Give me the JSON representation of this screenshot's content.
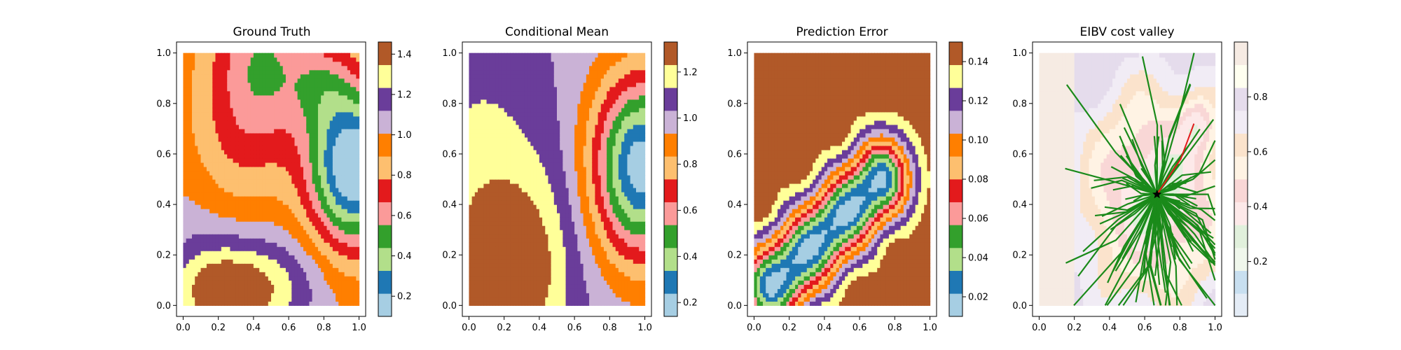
{
  "chart_data": [
    {
      "type": "heatmap",
      "title": "Ground Truth",
      "xlabel": "",
      "ylabel": "",
      "xlim": [
        0.0,
        1.0
      ],
      "ylim": [
        0.0,
        1.0
      ],
      "xticks": [
        "0.0",
        "0.2",
        "0.4",
        "0.6",
        "0.8",
        "1.0"
      ],
      "yticks": [
        "0.0",
        "0.2",
        "0.4",
        "0.6",
        "0.8",
        "1.0"
      ],
      "colormap": [
        "#a6cee3",
        "#1f78b4",
        "#b2df8a",
        "#33a02c",
        "#fb9a99",
        "#e31a1c",
        "#fdbf6f",
        "#ff7f00",
        "#cab2d6",
        "#6a3d9a",
        "#ffff99",
        "#b15928"
      ],
      "colorbar": {
        "range": [
          0.1,
          1.46
        ],
        "ticks": [
          "0.2",
          "0.4",
          "0.6",
          "0.8",
          "1.0",
          "1.2",
          "1.4"
        ]
      },
      "field": {
        "base": 1.0,
        "components": [
          {
            "cx": 0.97,
            "cy": 0.55,
            "sx": 0.18,
            "sy": 0.22,
            "a": -0.95
          },
          {
            "cx": 0.45,
            "cy": 0.95,
            "sx": 0.22,
            "sy": 0.22,
            "a": -0.45
          },
          {
            "cx": 0.22,
            "cy": 0.05,
            "sx": 0.2,
            "sy": 0.14,
            "a": 0.45
          },
          {
            "cx": 0.55,
            "cy": 0.08,
            "sx": 0.2,
            "sy": 0.14,
            "a": 0.2
          },
          {
            "cx": 0.3,
            "cy": 0.6,
            "sx": 0.22,
            "sy": 0.18,
            "a": -0.15
          },
          {
            "cx": 0.8,
            "cy": 0.88,
            "sx": 0.12,
            "sy": 0.12,
            "a": -0.2
          },
          {
            "cx": 0.05,
            "cy": 0.35,
            "sx": 0.12,
            "sy": 0.2,
            "a": 0.05
          }
        ]
      }
    },
    {
      "type": "heatmap",
      "title": "Conditional Mean",
      "xlabel": "",
      "ylabel": "",
      "xlim": [
        0.0,
        1.0
      ],
      "ylim": [
        0.0,
        1.0
      ],
      "xticks": [
        "0.0",
        "0.2",
        "0.4",
        "0.6",
        "0.8",
        "1.0"
      ],
      "yticks": [
        "0.0",
        "0.2",
        "0.4",
        "0.6",
        "0.8",
        "1.0"
      ],
      "colormap": [
        "#a6cee3",
        "#1f78b4",
        "#b2df8a",
        "#33a02c",
        "#fb9a99",
        "#e31a1c",
        "#fdbf6f",
        "#ff7f00",
        "#cab2d6",
        "#6a3d9a",
        "#ffff99",
        "#b15928"
      ],
      "colorbar": {
        "range": [
          0.14,
          1.33
        ],
        "ticks": [
          "0.2",
          "0.4",
          "0.6",
          "0.8",
          "1.0",
          "1.2"
        ]
      },
      "field": {
        "base": 1.02,
        "components": [
          {
            "cx": 0.98,
            "cy": 0.55,
            "sx": 0.2,
            "sy": 0.26,
            "a": -0.85
          },
          {
            "cx": 0.18,
            "cy": 0.1,
            "sx": 0.22,
            "sy": 0.22,
            "a": 0.32
          },
          {
            "cx": 0.05,
            "cy": 0.6,
            "sx": 0.22,
            "sy": 0.35,
            "a": 0.12
          },
          {
            "cx": 0.4,
            "cy": 0.35,
            "sx": 0.22,
            "sy": 0.3,
            "a": 0.1
          }
        ]
      }
    },
    {
      "type": "heatmap",
      "title": "Prediction Error",
      "xlabel": "",
      "ylabel": "",
      "xlim": [
        0.0,
        1.0
      ],
      "ylim": [
        0.0,
        1.0
      ],
      "xticks": [
        "0.0",
        "0.2",
        "0.4",
        "0.6",
        "0.8",
        "1.0"
      ],
      "yticks": [
        "0.0",
        "0.2",
        "0.4",
        "0.6",
        "0.8",
        "1.0"
      ],
      "colormap": [
        "#a6cee3",
        "#1f78b4",
        "#b2df8a",
        "#33a02c",
        "#fb9a99",
        "#e31a1c",
        "#fdbf6f",
        "#ff7f00",
        "#cab2d6",
        "#6a3d9a",
        "#ffff99",
        "#b15928"
      ],
      "colorbar": {
        "range": [
          0.01,
          0.15
        ],
        "ticks": [
          "0.02",
          "0.04",
          "0.06",
          "0.08",
          "0.10",
          "0.12",
          "0.14"
        ]
      },
      "valley": {
        "x0": 0.1,
        "y0": 0.08,
        "x1": 0.72,
        "y1": 0.5,
        "width": 0.26,
        "min": 0.018,
        "max": 0.15
      }
    },
    {
      "type": "heatmap",
      "title": "EIBV cost valley",
      "xlabel": "",
      "ylabel": "",
      "xlim": [
        0.0,
        1.0
      ],
      "ylim": [
        0.0,
        1.0
      ],
      "xticks": [
        "0.0",
        "0.2",
        "0.4",
        "0.6",
        "0.8",
        "1.0"
      ],
      "yticks": [
        "0.0",
        "0.2",
        "0.4",
        "0.6",
        "0.8",
        "1.0"
      ],
      "colormap": [
        "#e4ecf6",
        "#c8dff0",
        "#f0f7ec",
        "#e1f0dc",
        "#fde9e9",
        "#f9d7d6",
        "#fff3e4",
        "#fbe3cc",
        "#f1ecf5",
        "#e5dcec",
        "#fffff0",
        "#f6ebe3"
      ],
      "colorbar": {
        "range": [
          0.0,
          1.0
        ],
        "ticks": [
          "0.2",
          "0.4",
          "0.6",
          "0.8"
        ]
      },
      "current_location": [
        0.67,
        0.44
      ],
      "path_end": [
        0.88,
        0.72
      ],
      "tree_edges": 120
    }
  ]
}
